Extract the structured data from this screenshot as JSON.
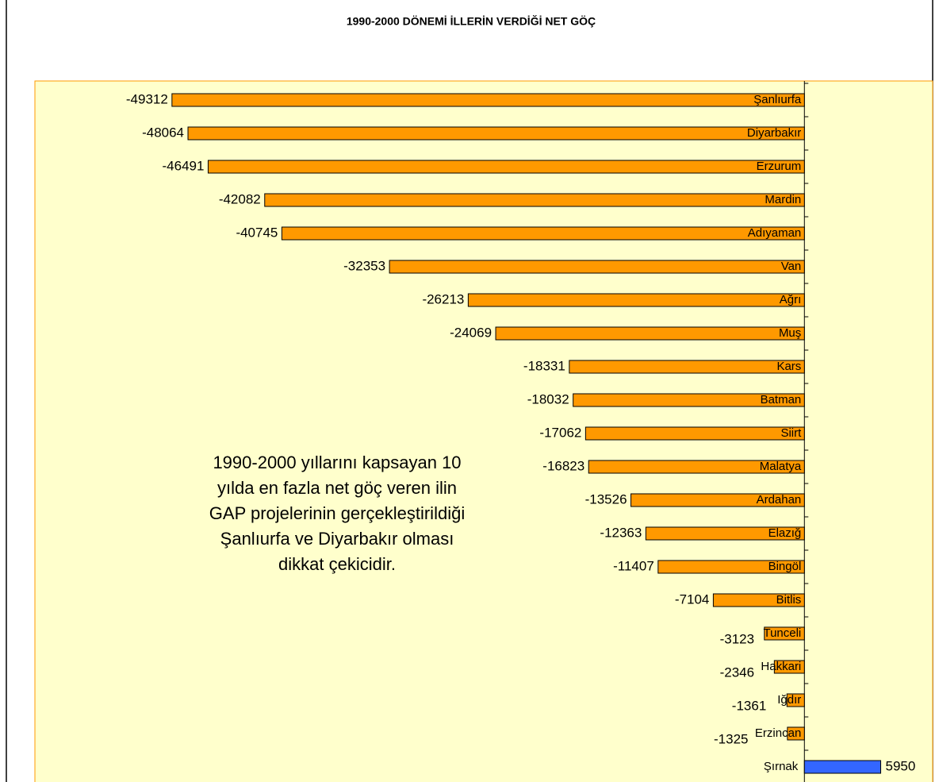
{
  "chart_data": {
    "type": "barh",
    "title": "1990-2000 DÖNEMİ İLLERİN VERDİĞİ NET GÖÇ",
    "categories": [
      "Şanlıurfa",
      "Diyarbakır",
      "Erzurum",
      "Mardin",
      "Adıyaman",
      "Van",
      "Ağrı",
      "Muş",
      "Kars",
      "Batman",
      "Siirt",
      "Malatya",
      "Ardahan",
      "Elazığ",
      "Bingöl",
      "Bitlis",
      "Tunceli",
      "Hakkari",
      "Iğdır",
      "Erzincan",
      "Şırnak"
    ],
    "values": [
      -49312,
      -48064,
      -46491,
      -42082,
      -40745,
      -32353,
      -26213,
      -24069,
      -18331,
      -18032,
      -17062,
      -16823,
      -13526,
      -12363,
      -11407,
      -7104,
      -3123,
      -2346,
      -1361,
      -1325,
      5950
    ],
    "negative_color": "#ff9900",
    "positive_color": "#3366ff",
    "xlim": [
      -60000,
      10000
    ],
    "annotation": [
      "1990-2000 yıllarını kapsayan 10",
      "yılda en fazla net göç veren ilin",
      "GAP projelerinin gerçekleştirildiği",
      "Şanlıurfa ve Diyarbakır olması",
      "dikkat çekicidir."
    ]
  }
}
